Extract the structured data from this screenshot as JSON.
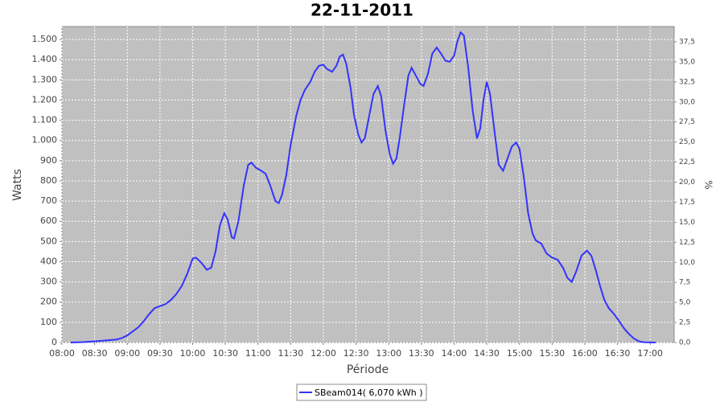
{
  "chart_data": {
    "type": "line",
    "title": "22-11-2011",
    "x_label": "Période",
    "y_label": "Watts",
    "y2_label": "%",
    "x": [
      "08:08",
      "08:20",
      "08:30",
      "08:40",
      "08:50",
      "08:55",
      "09:00",
      "09:10",
      "09:15",
      "09:20",
      "09:25",
      "09:30",
      "09:35",
      "09:40",
      "09:45",
      "09:50",
      "09:55",
      "10:00",
      "10:03",
      "10:08",
      "10:13",
      "10:17",
      "10:21",
      "10:25",
      "10:29",
      "10:32",
      "10:36",
      "10:38",
      "10:42",
      "10:47",
      "10:51",
      "10:54",
      "10:58",
      "11:03",
      "11:07",
      "11:11",
      "11:16",
      "11:19",
      "11:22",
      "11:26",
      "11:30",
      "11:35",
      "11:39",
      "11:43",
      "11:48",
      "11:52",
      "11:56",
      "12:00",
      "12:03",
      "12:08",
      "12:12",
      "12:15",
      "12:18",
      "12:21",
      "12:25",
      "12:28",
      "12:32",
      "12:35",
      "12:38",
      "12:42",
      "12:46",
      "12:50",
      "12:53",
      "12:57",
      "13:01",
      "13:04",
      "13:07",
      "13:10",
      "13:14",
      "13:18",
      "13:21",
      "13:25",
      "13:29",
      "13:32",
      "13:36",
      "13:40",
      "13:44",
      "13:48",
      "13:52",
      "13:56",
      "14:00",
      "14:03",
      "14:06",
      "14:09",
      "14:13",
      "14:17",
      "14:21",
      "14:24",
      "14:27",
      "14:30",
      "14:33",
      "14:37",
      "14:41",
      "14:45",
      "14:49",
      "14:53",
      "14:57",
      "15:00",
      "15:04",
      "15:08",
      "15:12",
      "15:15",
      "15:20",
      "15:25",
      "15:30",
      "15:35",
      "15:40",
      "15:44",
      "15:48",
      "15:52",
      "15:57",
      "16:02",
      "16:06",
      "16:10",
      "16:14",
      "16:18",
      "16:22",
      "16:27",
      "16:31",
      "16:36",
      "16:40",
      "16:45",
      "16:50",
      "16:55",
      "17:05"
    ],
    "series": [
      {
        "name": "SBeam014( 6,070 kWh )",
        "color": "#3333ff",
        "values": [
          0,
          2,
          6,
          10,
          15,
          22,
          35,
          75,
          105,
          140,
          170,
          180,
          190,
          210,
          240,
          280,
          340,
          415,
          420,
          395,
          360,
          370,
          450,
          580,
          640,
          610,
          520,
          515,
          600,
          780,
          880,
          890,
          865,
          850,
          835,
          780,
          700,
          690,
          730,
          830,
          980,
          1120,
          1200,
          1250,
          1290,
          1340,
          1370,
          1375,
          1355,
          1340,
          1370,
          1415,
          1425,
          1380,
          1260,
          1130,
          1030,
          990,
          1010,
          1120,
          1230,
          1270,
          1220,
          1050,
          930,
          885,
          910,
          1010,
          1170,
          1320,
          1360,
          1320,
          1280,
          1270,
          1330,
          1430,
          1460,
          1430,
          1395,
          1390,
          1420,
          1490,
          1535,
          1520,
          1360,
          1150,
          1010,
          1060,
          1200,
          1290,
          1230,
          1050,
          880,
          850,
          910,
          970,
          990,
          960,
          820,
          640,
          540,
          505,
          490,
          440,
          420,
          410,
          370,
          320,
          300,
          350,
          430,
          455,
          430,
          360,
          280,
          210,
          170,
          140,
          110,
          70,
          45,
          20,
          5,
          1,
          0
        ]
      }
    ],
    "xlim": [
      "08:00",
      "17:22"
    ],
    "xticks": [
      "08:00",
      "08:30",
      "09:00",
      "09:30",
      "10:00",
      "10:30",
      "11:00",
      "11:30",
      "12:00",
      "12:30",
      "13:00",
      "13:30",
      "14:00",
      "14:30",
      "15:00",
      "15:30",
      "16:00",
      "16:30",
      "17:00"
    ],
    "ylim": [
      0,
      1564
    ],
    "yticks": [
      0,
      100,
      200,
      300,
      400,
      500,
      600,
      700,
      800,
      900,
      {
        "value": 1000,
        "label": "1.000"
      },
      {
        "value": 1100,
        "label": "1.100"
      },
      {
        "value": 1200,
        "label": "1.200"
      },
      {
        "value": 1300,
        "label": "1.300"
      },
      {
        "value": 1400,
        "label": "1.400"
      },
      {
        "value": 1500,
        "label": "1.500"
      }
    ],
    "y2lim": [
      0,
      39.4
    ],
    "y2ticks": [
      {
        "value": 0,
        "label": "0,0"
      },
      {
        "value": 2.5,
        "label": "2,5"
      },
      {
        "value": 5,
        "label": "5,0"
      },
      {
        "value": 7.5,
        "label": "7,5"
      },
      {
        "value": 10,
        "label": "10,0"
      },
      {
        "value": 12.5,
        "label": "12,5"
      },
      {
        "value": 15,
        "label": "15,0"
      },
      {
        "value": 17.5,
        "label": "17,5"
      },
      {
        "value": 20,
        "label": "20,0"
      },
      {
        "value": 22.5,
        "label": "22,5"
      },
      {
        "value": 25,
        "label": "25,0"
      },
      {
        "value": 27.5,
        "label": "27,5"
      },
      {
        "value": 30,
        "label": "30,0"
      },
      {
        "value": 32.5,
        "label": "32,5"
      },
      {
        "value": 35,
        "label": "35,0"
      },
      {
        "value": 37.5,
        "label": "37,5"
      }
    ],
    "grid": true,
    "legend": "bottom"
  }
}
